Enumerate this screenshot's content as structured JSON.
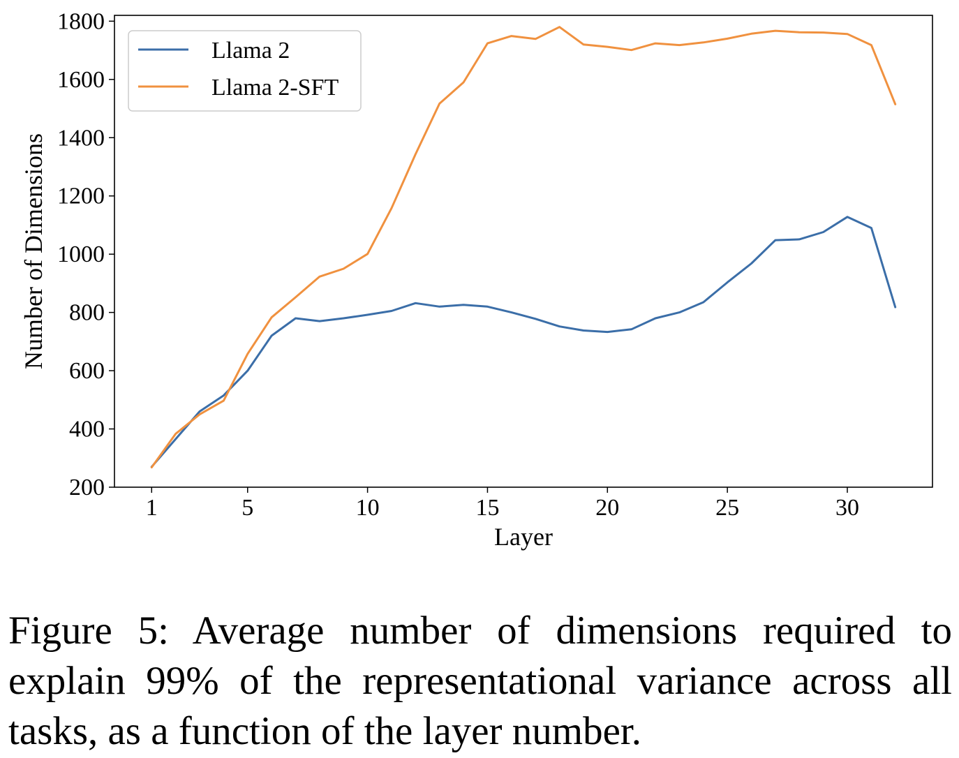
{
  "chart_data": {
    "type": "line",
    "title": "",
    "xlabel": "Layer",
    "ylabel": "Number of Dimensions",
    "xlim": [
      -0.55,
      33.55
    ],
    "ylim": [
      200,
      1820
    ],
    "xticks": [
      1,
      5,
      10,
      15,
      20,
      25,
      30
    ],
    "yticks": [
      200,
      400,
      600,
      800,
      1000,
      1200,
      1400,
      1600,
      1800
    ],
    "grid": false,
    "legend_position": "upper-left",
    "x": [
      1,
      2,
      3,
      4,
      5,
      6,
      7,
      8,
      9,
      10,
      11,
      12,
      13,
      14,
      15,
      16,
      17,
      18,
      19,
      20,
      21,
      22,
      23,
      24,
      25,
      26,
      27,
      28,
      29,
      30,
      31,
      32
    ],
    "series": [
      {
        "name": "Llama 2",
        "color": "#3b6ea8",
        "values": [
          270,
          365,
          460,
          515,
          600,
          720,
          780,
          770,
          780,
          792,
          805,
          832,
          820,
          826,
          820,
          800,
          778,
          752,
          738,
          733,
          742,
          780,
          800,
          835,
          903,
          968,
          1048,
          1051,
          1076,
          1128,
          1090,
          818
        ]
      },
      {
        "name": "Llama 2-SFT",
        "color": "#f0913f",
        "values": [
          268,
          383,
          450,
          497,
          658,
          783,
          852,
          923,
          950,
          1001,
          1158,
          1343,
          1517,
          1590,
          1724,
          1749,
          1739,
          1780,
          1720,
          1712,
          1701,
          1724,
          1718,
          1727,
          1740,
          1757,
          1767,
          1762,
          1761,
          1756,
          1718,
          1515
        ]
      }
    ]
  },
  "caption": {
    "text": "Figure 5:  Average number of dimensions required to explain 99% of the representational variance across all tasks, as a function of the layer number."
  }
}
